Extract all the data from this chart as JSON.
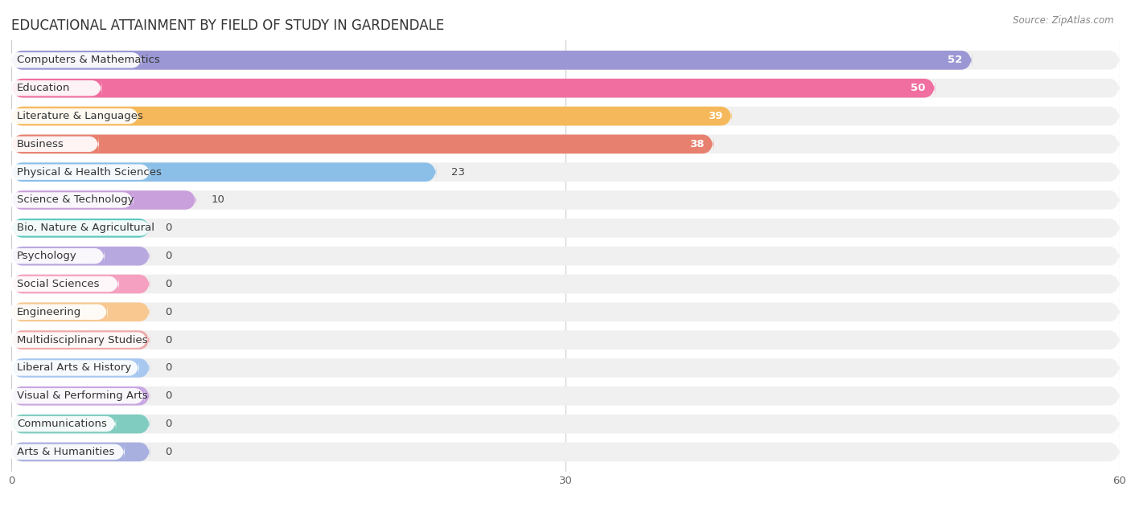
{
  "title": "EDUCATIONAL ATTAINMENT BY FIELD OF STUDY IN GARDENDALE",
  "source": "Source: ZipAtlas.com",
  "categories": [
    "Computers & Mathematics",
    "Education",
    "Literature & Languages",
    "Business",
    "Physical & Health Sciences",
    "Science & Technology",
    "Bio, Nature & Agricultural",
    "Psychology",
    "Social Sciences",
    "Engineering",
    "Multidisciplinary Studies",
    "Liberal Arts & History",
    "Visual & Performing Arts",
    "Communications",
    "Arts & Humanities"
  ],
  "values": [
    52,
    50,
    39,
    38,
    23,
    10,
    0,
    0,
    0,
    0,
    0,
    0,
    0,
    0,
    0
  ],
  "bar_colors": [
    "#9b97d4",
    "#f06fa0",
    "#f5b85a",
    "#e88070",
    "#8bbfe8",
    "#c9a0dc",
    "#5ec8c0",
    "#b8a8e0",
    "#f5a0c0",
    "#f8c890",
    "#f0a8a8",
    "#a8c8f0",
    "#c8a8e0",
    "#80ccc0",
    "#a8b0e0"
  ],
  "xlim": [
    0,
    60
  ],
  "xticks": [
    0,
    30,
    60
  ],
  "background_color": "#ffffff",
  "row_bg_color": "#f0f0f0",
  "title_fontsize": 12,
  "label_fontsize": 9.5,
  "value_fontsize": 9.5,
  "zero_stub": 7.5
}
